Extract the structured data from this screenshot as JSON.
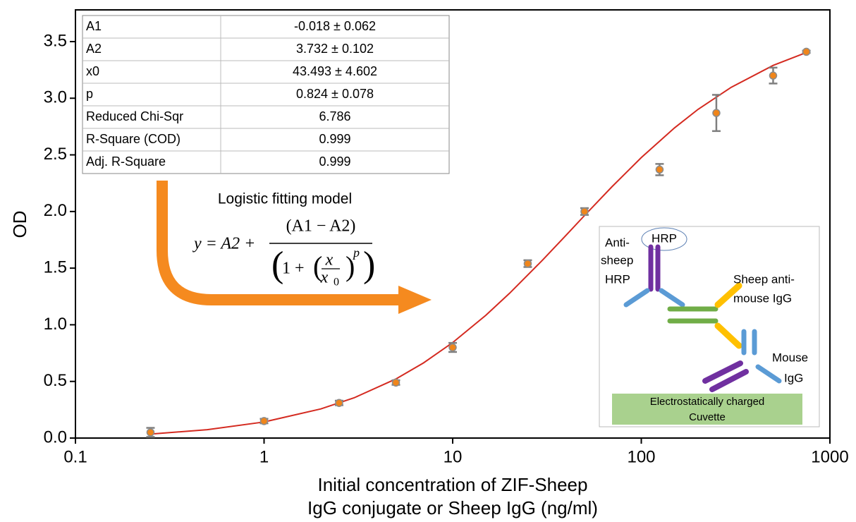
{
  "chart_data": {
    "type": "scatter",
    "ylabel": "OD",
    "xlabel": [
      "Initial concentration of ZIF-Sheep",
      "IgG conjugate or Sheep IgG (ng/ml)"
    ],
    "xscale": "log",
    "xlim": [
      0.1,
      1000
    ],
    "xticks": [
      0.1,
      1,
      10,
      100,
      1000
    ],
    "ylim": [
      0,
      3.78
    ],
    "yticks": [
      {
        "value": 0,
        "label": "0.0"
      },
      0.5,
      {
        "value": 1,
        "label": "1.0"
      },
      1.5,
      {
        "value": 2,
        "label": "2.0"
      },
      2.5,
      {
        "value": 3,
        "label": "3.0"
      },
      3.5
    ],
    "points": {
      "color": "#f0851a",
      "edge_color": "#8c8c8c",
      "error_color": "#7f7f7f",
      "x": [
        0.25,
        1,
        2.5,
        5,
        10,
        25,
        50,
        125,
        250,
        500,
        750
      ],
      "values": [
        0.05,
        0.15,
        0.31,
        0.49,
        0.8,
        1.54,
        2.0,
        2.37,
        2.87,
        3.2,
        3.41
      ],
      "errors": [
        0.04,
        0.02,
        0.02,
        0.02,
        0.04,
        0.03,
        0.03,
        0.05,
        0.16,
        0.07,
        0.01
      ]
    },
    "fit": {
      "color": "#d42a20",
      "x": [
        0.25,
        0.5,
        1,
        2,
        3,
        5,
        7,
        10,
        15,
        20,
        30,
        40,
        50,
        70,
        100,
        150,
        200,
        300,
        500,
        750
      ],
      "y": [
        0.035,
        0.074,
        0.142,
        0.257,
        0.355,
        0.522,
        0.663,
        0.843,
        1.084,
        1.277,
        1.572,
        1.792,
        1.965,
        2.22,
        2.476,
        2.738,
        2.902,
        3.097,
        3.29,
        3.404
      ]
    },
    "table": [
      [
        "A1",
        "-0.018 ± 0.062"
      ],
      [
        "A2",
        "3.732 ± 0.102"
      ],
      [
        "x0",
        "43.493 ± 4.602"
      ],
      [
        "p",
        "0.824 ± 0.078"
      ],
      [
        "Reduced Chi-Sqr",
        "6.786"
      ],
      [
        "R-Square (COD)",
        "0.999"
      ],
      [
        "Adj. R-Square",
        "0.999"
      ]
    ],
    "model_title": "Logistic fitting model",
    "equation": {
      "lhs": "y = A2 +",
      "numerator": "(A1 − A2)",
      "denominator": [
        "1 +",
        "x",
        "x",
        "0",
        "p"
      ]
    },
    "inset_labels": {
      "anti": [
        "Anti-",
        "sheep",
        "HRP"
      ],
      "hrp": "HRP",
      "sheep": [
        "Sheep anti-",
        "mouse IgG"
      ],
      "mouse": [
        "Mouse",
        "IgG"
      ],
      "cuvette": [
        "Electrostatically charged",
        "Cuvette"
      ]
    }
  }
}
